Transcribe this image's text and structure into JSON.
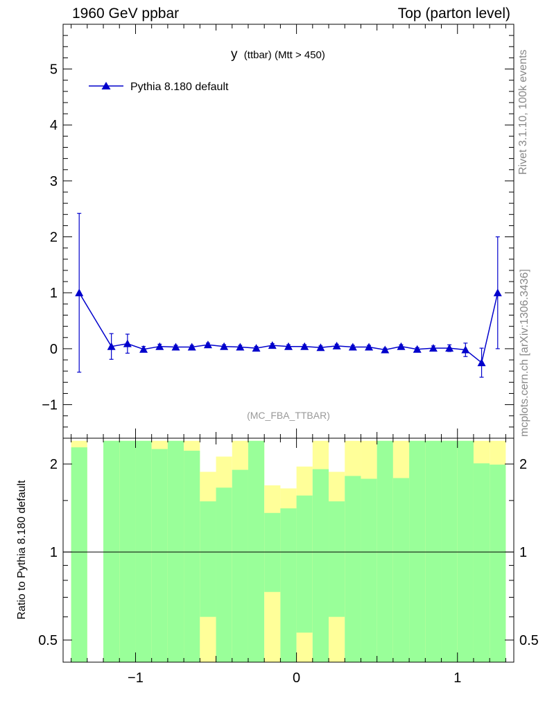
{
  "header": {
    "left": "1960 GeV ppbar",
    "right": "Top (parton level)"
  },
  "side": {
    "rivet": "Rivet 3.1.10,  100k events",
    "mcplots": "mcplots.cern.ch [arXiv:1306.3436]"
  },
  "colors": {
    "series": "#0000cc",
    "band_green": "#99ff99",
    "band_yellow": "#ffff99"
  },
  "chart_data": {
    "type": "line",
    "title": "y (ttbar) (Mtt > 450)",
    "title_main": "y",
    "title_sub": "(ttbar) (Mtt > 450)",
    "analysis": "(MC_FBA_TTBAR)",
    "xlim": [
      -1.45,
      1.35
    ],
    "ylim": [
      -1.6,
      5.8
    ],
    "x_ticks": [
      -1,
      0,
      1
    ],
    "x_tick_labels": [
      "−1",
      "0",
      "1"
    ],
    "y_ticks": [
      -1,
      0,
      1,
      2,
      3,
      4,
      5
    ],
    "y_tick_labels": [
      "−1",
      "0",
      "1",
      "2",
      "3",
      "4",
      "5"
    ],
    "legend": "Pythia 8.180 default",
    "series": [
      {
        "name": "Pythia 8.180 default",
        "x": [
          -1.35,
          -1.15,
          -1.05,
          -0.95,
          -0.85,
          -0.75,
          -0.65,
          -0.55,
          -0.45,
          -0.35,
          -0.25,
          -0.15,
          -0.05,
          0.05,
          0.15,
          0.25,
          0.35,
          0.45,
          0.55,
          0.65,
          0.75,
          0.85,
          0.95,
          1.05,
          1.15,
          1.25
        ],
        "y": [
          1.0,
          0.04,
          0.09,
          -0.01,
          0.04,
          0.03,
          0.03,
          0.07,
          0.04,
          0.03,
          0.01,
          0.06,
          0.04,
          0.04,
          0.02,
          0.05,
          0.03,
          0.03,
          -0.02,
          0.04,
          -0.01,
          0.01,
          0.01,
          -0.02,
          -0.25,
          1.0
        ],
        "yerr": [
          1.42,
          0.23,
          0.17,
          0.05,
          0.04,
          0.03,
          0.03,
          0.03,
          0.03,
          0.03,
          0.03,
          0.03,
          0.03,
          0.03,
          0.03,
          0.03,
          0.03,
          0.03,
          0.03,
          0.03,
          0.03,
          0.04,
          0.06,
          0.12,
          0.26,
          1.0
        ]
      }
    ],
    "ratio": {
      "ylabel": "Ratio to Pythia 8.180 default",
      "ylim": [
        0.42,
        2.45
      ],
      "y_ticks": [
        0.5,
        1,
        2
      ],
      "y_tick_labels": [
        "0.5",
        "1",
        "2"
      ],
      "reference": 1,
      "bands": [
        {
          "x0": -1.4,
          "x1": -1.3,
          "green_lo": 0.38,
          "green_hi": 2.28,
          "yellow_lo": 0.38,
          "yellow_hi": 2.4
        },
        {
          "x0": -1.2,
          "x1": -1.1,
          "green_lo": 0.38,
          "green_hi": 2.4,
          "yellow_lo": 0.38,
          "yellow_hi": 2.4
        },
        {
          "x0": -1.1,
          "x1": -1.0,
          "green_lo": 0.38,
          "green_hi": 2.4,
          "yellow_lo": 0.38,
          "yellow_hi": 2.4
        },
        {
          "x0": -1.0,
          "x1": -0.9,
          "green_lo": 0.38,
          "green_hi": 2.4,
          "yellow_lo": 0.38,
          "yellow_hi": 2.4
        },
        {
          "x0": -0.9,
          "x1": -0.8,
          "green_lo": 0.38,
          "green_hi": 2.25,
          "yellow_lo": 0.38,
          "yellow_hi": 2.4
        },
        {
          "x0": -0.8,
          "x1": -0.7,
          "green_lo": 0.38,
          "green_hi": 2.4,
          "yellow_lo": 0.38,
          "yellow_hi": 2.4
        },
        {
          "x0": -0.7,
          "x1": -0.6,
          "green_lo": 0.38,
          "green_hi": 2.22,
          "yellow_lo": 0.38,
          "yellow_hi": 2.4
        },
        {
          "x0": -0.6,
          "x1": -0.5,
          "green_lo": 0.6,
          "green_hi": 1.49,
          "yellow_lo": 0.38,
          "yellow_hi": 1.88
        },
        {
          "x0": -0.5,
          "x1": -0.4,
          "green_lo": 0.38,
          "green_hi": 1.66,
          "yellow_lo": 0.38,
          "yellow_hi": 2.12
        },
        {
          "x0": -0.4,
          "x1": -0.3,
          "green_lo": 0.38,
          "green_hi": 1.91,
          "yellow_lo": 0.38,
          "yellow_hi": 2.4
        },
        {
          "x0": -0.3,
          "x1": -0.2,
          "green_lo": 0.38,
          "green_hi": 2.4,
          "yellow_lo": 0.38,
          "yellow_hi": 2.4
        },
        {
          "x0": -0.2,
          "x1": -0.1,
          "green_lo": 0.73,
          "green_hi": 1.36,
          "yellow_lo": 0.38,
          "yellow_hi": 1.69
        },
        {
          "x0": -0.1,
          "x1": 0.0,
          "green_lo": 0.38,
          "green_hi": 1.41,
          "yellow_lo": 0.39,
          "yellow_hi": 1.65
        },
        {
          "x0": 0.0,
          "x1": 0.1,
          "green_lo": 0.53,
          "green_hi": 1.56,
          "yellow_lo": 0.38,
          "yellow_hi": 1.96
        },
        {
          "x0": 0.1,
          "x1": 0.2,
          "green_lo": 0.38,
          "green_hi": 1.92,
          "yellow_lo": 0.38,
          "yellow_hi": 2.4
        },
        {
          "x0": 0.2,
          "x1": 0.3,
          "green_lo": 0.6,
          "green_hi": 1.49,
          "yellow_lo": 0.38,
          "yellow_hi": 1.88
        },
        {
          "x0": 0.3,
          "x1": 0.4,
          "green_lo": 0.38,
          "green_hi": 1.82,
          "yellow_lo": 0.38,
          "yellow_hi": 2.4
        },
        {
          "x0": 0.4,
          "x1": 0.5,
          "green_lo": 0.38,
          "green_hi": 1.78,
          "yellow_lo": 0.38,
          "yellow_hi": 2.4
        },
        {
          "x0": 0.5,
          "x1": 0.6,
          "green_lo": 0.38,
          "green_hi": 2.4,
          "yellow_lo": 0.38,
          "yellow_hi": 2.4
        },
        {
          "x0": 0.6,
          "x1": 0.7,
          "green_lo": 0.38,
          "green_hi": 1.79,
          "yellow_lo": 0.38,
          "yellow_hi": 2.4
        },
        {
          "x0": 0.7,
          "x1": 0.8,
          "green_lo": 0.38,
          "green_hi": 2.4,
          "yellow_lo": 0.38,
          "yellow_hi": 2.4
        },
        {
          "x0": 0.8,
          "x1": 0.9,
          "green_lo": 0.38,
          "green_hi": 2.4,
          "yellow_lo": 0.38,
          "yellow_hi": 2.4
        },
        {
          "x0": 0.9,
          "x1": 1.0,
          "green_lo": 0.38,
          "green_hi": 2.4,
          "yellow_lo": 0.38,
          "yellow_hi": 2.4
        },
        {
          "x0": 1.0,
          "x1": 1.1,
          "green_lo": 0.38,
          "green_hi": 2.4,
          "yellow_lo": 0.38,
          "yellow_hi": 2.4
        },
        {
          "x0": 1.1,
          "x1": 1.2,
          "green_lo": 0.38,
          "green_hi": 2.01,
          "yellow_lo": 0.38,
          "yellow_hi": 2.4
        },
        {
          "x0": 1.2,
          "x1": 1.3,
          "green_lo": 0.38,
          "green_hi": 1.99,
          "yellow_lo": 0.38,
          "yellow_hi": 2.4
        }
      ]
    }
  }
}
